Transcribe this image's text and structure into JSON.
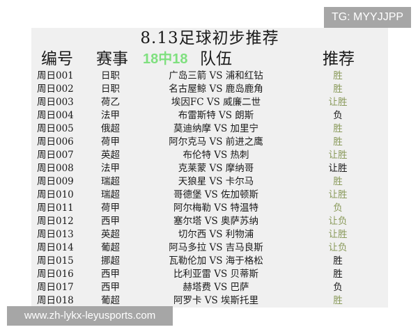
{
  "title": "8.13足球初步推荐",
  "headers": {
    "id": "编号",
    "league": "赛事",
    "teams": "队伍",
    "pick": "推荐"
  },
  "colors": {
    "pick_green": "#8a9a5b",
    "pick_black": "#1a1a1a"
  },
  "rows": [
    {
      "id": "周日001",
      "league": "日职",
      "teams": "广岛三箭 VS 浦和红钻",
      "pick": "胜",
      "color": "#8a9a5b"
    },
    {
      "id": "周日002",
      "league": "日职",
      "teams": "名古屋鲸 VS 鹿岛鹿角",
      "pick": "胜",
      "color": "#8a9a5b"
    },
    {
      "id": "周日003",
      "league": "荷乙",
      "teams": "埃因FC VS 威廉二世",
      "pick": "让胜",
      "color": "#8a9a5b"
    },
    {
      "id": "周日004",
      "league": "法甲",
      "teams": "布雷斯特 VS 朗斯",
      "pick": "负",
      "color": "#1a1a1a"
    },
    {
      "id": "周日005",
      "league": "俄超",
      "teams": "莫迪纳摩 VS 加里宁",
      "pick": "胜",
      "color": "#8a9a5b"
    },
    {
      "id": "周日006",
      "league": "荷甲",
      "teams": "阿尔克马 VS 前进之鹰",
      "pick": "胜",
      "color": "#8a9a5b"
    },
    {
      "id": "周日007",
      "league": "英超",
      "teams": "布伦特 VS 热刺",
      "pick": "让胜",
      "color": "#8a9a5b"
    },
    {
      "id": "周日008",
      "league": "法甲",
      "teams": "克莱蒙 VS 摩纳哥",
      "pick": "让胜",
      "color": "#1a1a1a"
    },
    {
      "id": "周日009",
      "league": "瑞超",
      "teams": "天狼星 VS 卡尔马",
      "pick": "胜",
      "color": "#8a9a5b"
    },
    {
      "id": "周日010",
      "league": "瑞超",
      "teams": "哥德堡 VS 佐加顿斯",
      "pick": "让胜",
      "color": "#8a9a5b"
    },
    {
      "id": "周日011",
      "league": "荷甲",
      "teams": "阿尔梅勒 VS 特温特",
      "pick": "负",
      "color": "#8a9a5b"
    },
    {
      "id": "周日012",
      "league": "西甲",
      "teams": "塞尔塔 VS 奥萨苏纳",
      "pick": "让负",
      "color": "#8a9a5b"
    },
    {
      "id": "周日013",
      "league": "英超",
      "teams": "切尔西 VS 利物浦",
      "pick": "让胜",
      "color": "#8a9a5b"
    },
    {
      "id": "周日014",
      "league": "葡超",
      "teams": "阿马多拉 VS 吉马良斯",
      "pick": "让负",
      "color": "#8a9a5b"
    },
    {
      "id": "周日015",
      "league": "挪超",
      "teams": "瓦勒伦加 VS 海于格松",
      "pick": "胜",
      "color": "#1a1a1a"
    },
    {
      "id": "周日016",
      "league": "西甲",
      "teams": "比利亚雷 VS 贝蒂斯",
      "pick": "胜",
      "color": "#1a1a1a"
    },
    {
      "id": "周日017",
      "league": "西甲",
      "teams": "赫塔费 VS 巴萨",
      "pick": "负",
      "color": "#1a1a1a"
    },
    {
      "id": "周日018",
      "league": "葡超",
      "teams": "阿罗卡 VS 埃斯托里",
      "pick": "胜",
      "color": "#8a9a5b"
    }
  ],
  "watermark": "18中18",
  "tg_banner": "TG: MYYJJPP",
  "url_banner": "www.zh-lykx-leyusports.com"
}
